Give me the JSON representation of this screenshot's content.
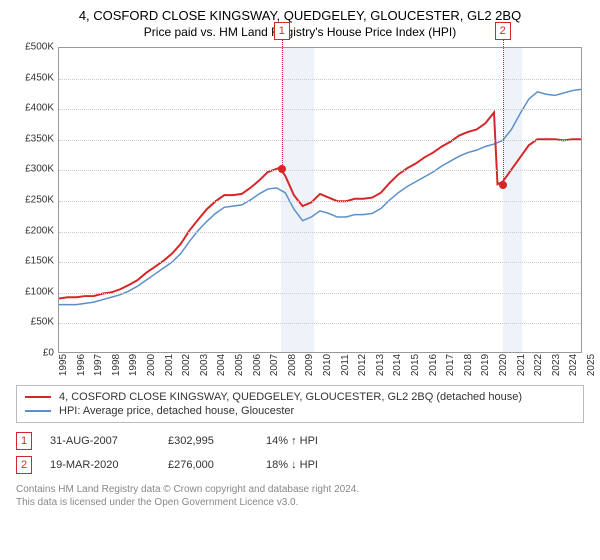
{
  "title": "4, COSFORD CLOSE KINGSWAY, QUEDGELEY, GLOUCESTER, GL2 2BQ",
  "subtitle": "Price paid vs. HM Land Registry's House Price Index (HPI)",
  "chart": {
    "type": "line",
    "x_years": [
      1995,
      1996,
      1997,
      1998,
      1999,
      2000,
      2001,
      2002,
      2003,
      2004,
      2005,
      2006,
      2007,
      2008,
      2009,
      2010,
      2011,
      2012,
      2013,
      2014,
      2015,
      2016,
      2017,
      2018,
      2019,
      2020,
      2021,
      2022,
      2023,
      2024,
      2025
    ],
    "ylim": [
      0,
      500
    ],
    "ytick_step": 50,
    "y_prefix": "£",
    "y_suffix": "K",
    "background_color": "#ffffff",
    "grid_color": "#cccccc",
    "border_color": "#999999",
    "title_fontsize": 13,
    "label_fontsize": 10,
    "shaded_ranges": [
      {
        "x0": 2007.6,
        "x1": 2009.5,
        "color": "#eef3f9"
      },
      {
        "x0": 2020.2,
        "x1": 2021.3,
        "color": "#eef3f9"
      }
    ],
    "series": [
      {
        "name": "price_paid",
        "label": "4, COSFORD CLOSE KINGSWAY, QUEDGELEY, GLOUCESTER, GL2 2BQ (detached house)",
        "color": "#d62728",
        "line_width": 2,
        "data": [
          [
            1995,
            88
          ],
          [
            1995.5,
            90
          ],
          [
            1996,
            90
          ],
          [
            1996.5,
            92
          ],
          [
            1997,
            92
          ],
          [
            1997.5,
            96
          ],
          [
            1998,
            98
          ],
          [
            1998.5,
            103
          ],
          [
            1999,
            110
          ],
          [
            1999.5,
            118
          ],
          [
            2000,
            130
          ],
          [
            2000.5,
            140
          ],
          [
            2001,
            150
          ],
          [
            2001.5,
            162
          ],
          [
            2002,
            178
          ],
          [
            2002.5,
            200
          ],
          [
            2003,
            218
          ],
          [
            2003.5,
            235
          ],
          [
            2004,
            248
          ],
          [
            2004.5,
            258
          ],
          [
            2005,
            258
          ],
          [
            2005.5,
            260
          ],
          [
            2006,
            270
          ],
          [
            2006.5,
            282
          ],
          [
            2007,
            296
          ],
          [
            2007.4,
            300
          ],
          [
            2007.66,
            303
          ],
          [
            2008,
            290
          ],
          [
            2008.5,
            258
          ],
          [
            2009,
            240
          ],
          [
            2009.5,
            246
          ],
          [
            2010,
            260
          ],
          [
            2010.5,
            254
          ],
          [
            2011,
            248
          ],
          [
            2011.5,
            248
          ],
          [
            2012,
            252
          ],
          [
            2012.5,
            252
          ],
          [
            2013,
            254
          ],
          [
            2013.5,
            262
          ],
          [
            2014,
            278
          ],
          [
            2014.5,
            292
          ],
          [
            2015,
            302
          ],
          [
            2015.5,
            310
          ],
          [
            2016,
            320
          ],
          [
            2016.5,
            328
          ],
          [
            2017,
            338
          ],
          [
            2017.5,
            346
          ],
          [
            2018,
            356
          ],
          [
            2018.5,
            362
          ],
          [
            2019,
            366
          ],
          [
            2019.5,
            376
          ],
          [
            2020,
            394
          ],
          [
            2020.2,
            276
          ],
          [
            2020.5,
            280
          ],
          [
            2021,
            300
          ],
          [
            2021.5,
            320
          ],
          [
            2022,
            340
          ],
          [
            2022.5,
            350
          ],
          [
            2023,
            350
          ],
          [
            2023.5,
            350
          ],
          [
            2024,
            348
          ],
          [
            2024.5,
            350
          ],
          [
            2025,
            350
          ]
        ]
      },
      {
        "name": "hpi",
        "label": "HPI: Average price, detached house, Gloucester",
        "color": "#5b8fc9",
        "line_width": 1.5,
        "data": [
          [
            1995,
            78
          ],
          [
            1995.5,
            78
          ],
          [
            1996,
            78
          ],
          [
            1996.5,
            80
          ],
          [
            1997,
            82
          ],
          [
            1997.5,
            86
          ],
          [
            1998,
            90
          ],
          [
            1998.5,
            94
          ],
          [
            1999,
            100
          ],
          [
            1999.5,
            108
          ],
          [
            2000,
            118
          ],
          [
            2000.5,
            128
          ],
          [
            2001,
            138
          ],
          [
            2001.5,
            148
          ],
          [
            2002,
            162
          ],
          [
            2002.5,
            182
          ],
          [
            2003,
            200
          ],
          [
            2003.5,
            215
          ],
          [
            2004,
            228
          ],
          [
            2004.5,
            238
          ],
          [
            2005,
            240
          ],
          [
            2005.5,
            242
          ],
          [
            2006,
            250
          ],
          [
            2006.5,
            260
          ],
          [
            2007,
            268
          ],
          [
            2007.5,
            270
          ],
          [
            2008,
            262
          ],
          [
            2008.5,
            235
          ],
          [
            2009,
            216
          ],
          [
            2009.5,
            222
          ],
          [
            2010,
            232
          ],
          [
            2010.5,
            228
          ],
          [
            2011,
            222
          ],
          [
            2011.5,
            222
          ],
          [
            2012,
            226
          ],
          [
            2012.5,
            226
          ],
          [
            2013,
            228
          ],
          [
            2013.5,
            236
          ],
          [
            2014,
            250
          ],
          [
            2014.5,
            262
          ],
          [
            2015,
            272
          ],
          [
            2015.5,
            280
          ],
          [
            2016,
            288
          ],
          [
            2016.5,
            296
          ],
          [
            2017,
            306
          ],
          [
            2017.5,
            314
          ],
          [
            2018,
            322
          ],
          [
            2018.5,
            328
          ],
          [
            2019,
            332
          ],
          [
            2019.5,
            338
          ],
          [
            2020,
            342
          ],
          [
            2020.5,
            348
          ],
          [
            2021,
            366
          ],
          [
            2021.5,
            392
          ],
          [
            2022,
            416
          ],
          [
            2022.5,
            428
          ],
          [
            2023,
            424
          ],
          [
            2023.5,
            422
          ],
          [
            2024,
            426
          ],
          [
            2024.5,
            430
          ],
          [
            2025,
            432
          ]
        ]
      }
    ],
    "markers": [
      {
        "id": "1",
        "x": 2007.66,
        "y": 303,
        "box_color": "#d62728"
      },
      {
        "id": "2",
        "x": 2020.21,
        "y": 276,
        "box_color": "#d62728"
      }
    ]
  },
  "legend": {
    "items": [
      {
        "color": "#d62728",
        "label": "4, COSFORD CLOSE KINGSWAY, QUEDGELEY, GLOUCESTER, GL2 2BQ (detached house)"
      },
      {
        "color": "#5b8fc9",
        "label": "HPI: Average price, detached house, Gloucester"
      }
    ]
  },
  "events": [
    {
      "id": "1",
      "date": "31-AUG-2007",
      "price": "£302,995",
      "delta": "14% ↑ HPI"
    },
    {
      "id": "2",
      "date": "19-MAR-2020",
      "price": "£276,000",
      "delta": "18% ↓ HPI"
    }
  ],
  "footnote_line1": "Contains HM Land Registry data © Crown copyright and database right 2024.",
  "footnote_line2": "This data is licensed under the Open Government Licence v3.0."
}
